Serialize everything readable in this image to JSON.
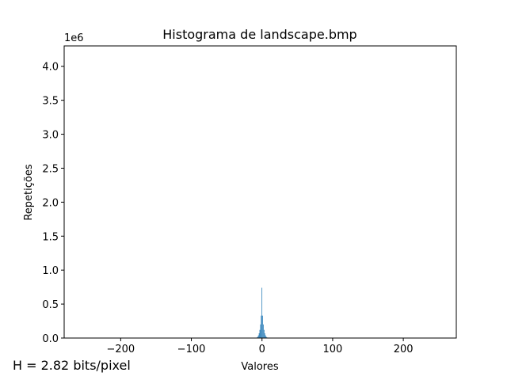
{
  "chart_data": {
    "type": "bar",
    "title": "Histograma de landscape.bmp",
    "xlabel": "Valores",
    "ylabel": "Repetições",
    "y_offset_label": "1e6",
    "xlim": [
      -280,
      275
    ],
    "ylim": [
      0,
      4300000
    ],
    "x_ticks": [
      -200,
      -100,
      0,
      100,
      200
    ],
    "x_tick_labels": [
      "−200",
      "−100",
      "0",
      "100",
      "200"
    ],
    "y_ticks": [
      0,
      500000,
      1000000,
      1500000,
      2000000,
      2500000,
      3000000,
      3500000,
      4000000
    ],
    "y_tick_labels": [
      "0.0",
      "0.5",
      "1.0",
      "1.5",
      "2.0",
      "2.5",
      "3.0",
      "3.5",
      "4.0"
    ],
    "bar_color": "#1f77b4",
    "grid": false,
    "x": [
      -8,
      -7,
      -6,
      -5,
      -4,
      -3,
      -2,
      -1,
      0,
      1,
      2,
      3,
      4,
      5,
      6,
      7,
      8
    ],
    "values": [
      5000,
      10000,
      20000,
      40000,
      70000,
      120000,
      200000,
      330000,
      740000,
      330000,
      200000,
      120000,
      70000,
      40000,
      20000,
      10000,
      5000
    ]
  },
  "annotation": {
    "entropy_text": "H = 2.82 bits/pixel"
  }
}
